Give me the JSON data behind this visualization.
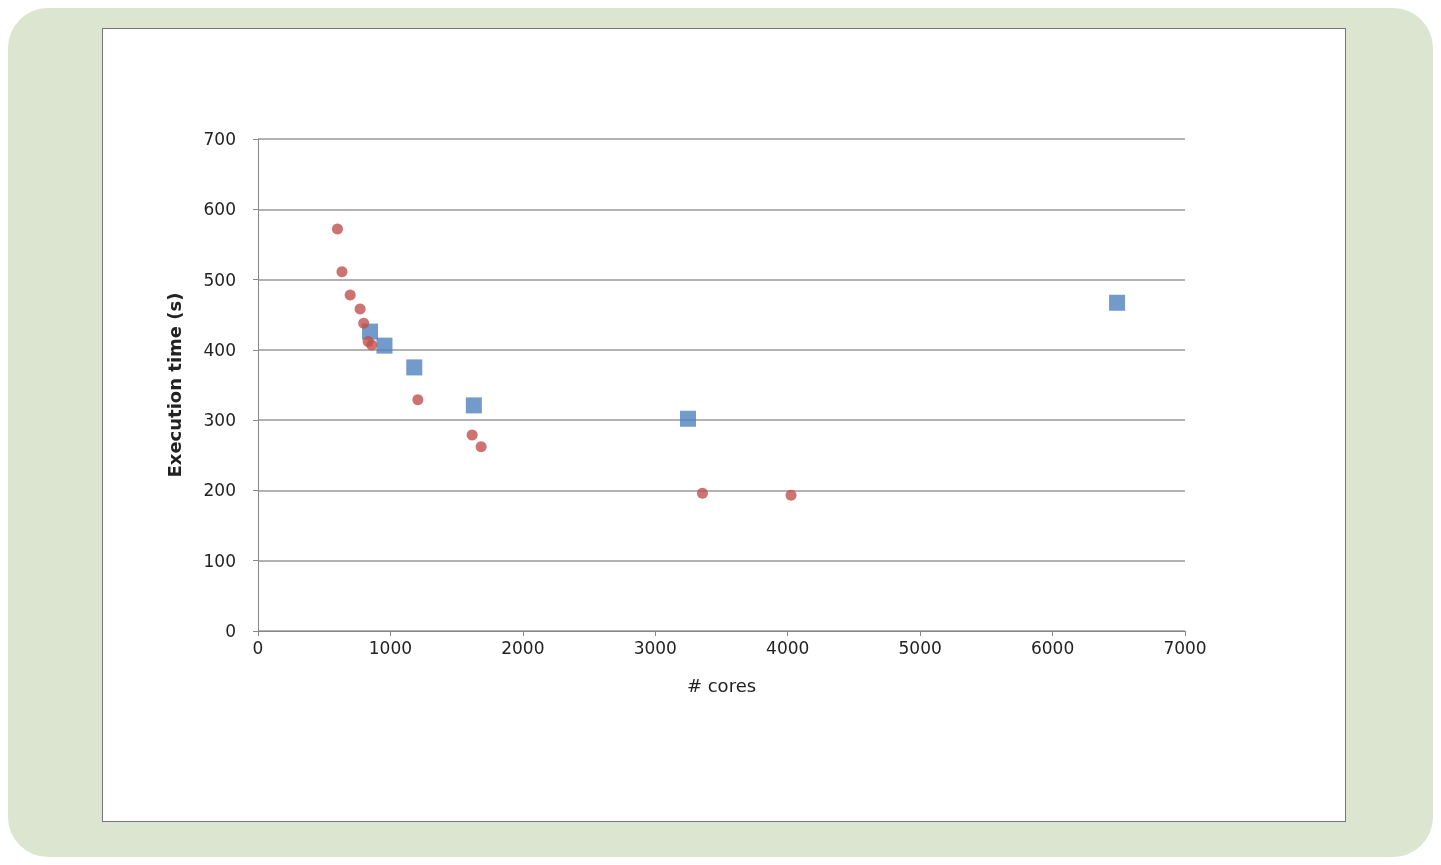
{
  "chart_data": {
    "type": "scatter",
    "xlabel": "# cores",
    "ylabel": "Execution time (s)",
    "xlim": [
      0,
      7000
    ],
    "xticks": [
      0,
      1000,
      2000,
      3000,
      4000,
      5000,
      6000,
      7000
    ],
    "ylim": [
      0,
      700
    ],
    "yticks": [
      0,
      100,
      200,
      300,
      400,
      500,
      600,
      700
    ],
    "grid": "y",
    "series": [
      {
        "color": "#c0504d",
        "marker": "circle",
        "x": [
          600,
          634,
          696,
          771,
          798,
          832,
          859,
          1207,
          1617,
          1685,
          3356,
          4025
        ],
        "values": [
          572,
          511,
          478,
          458,
          438,
          412,
          407,
          329,
          279,
          262,
          196,
          193
        ]
      },
      {
        "color": "#4f81bd",
        "marker": "square",
        "x": [
          846,
          955,
          1180,
          1630,
          3247,
          6487
        ],
        "values": [
          426,
          406,
          375,
          321,
          302,
          467
        ]
      }
    ]
  }
}
